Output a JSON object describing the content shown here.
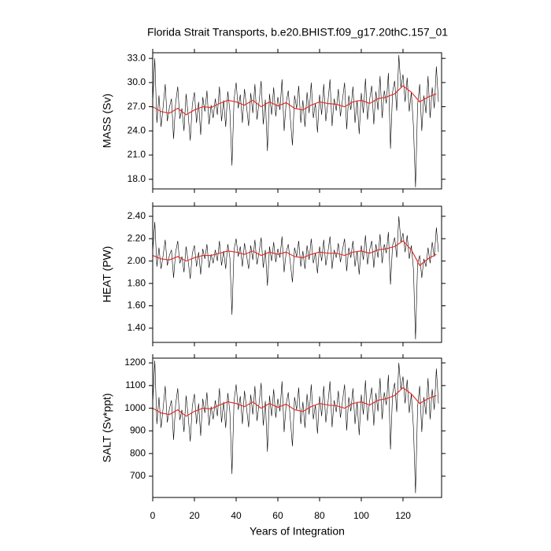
{
  "chart_data": [
    {
      "type": "line",
      "title": "Florida Strait Transports, b.e20.BHIST.f09_g17.20thC.157_01",
      "ylabel": "MASS (Sv)",
      "xlim": [
        0,
        138.5
      ],
      "xticks": [
        0,
        20,
        40,
        60,
        80,
        100,
        120
      ],
      "ylim": [
        16.8,
        33.7
      ],
      "yticks": [
        {
          "value": 18,
          "label": "18.0"
        },
        {
          "value": 21,
          "label": "21.0"
        },
        {
          "value": 24,
          "label": "24.0"
        },
        {
          "value": 27,
          "label": "27.0"
        },
        {
          "value": 30,
          "label": "30.0"
        },
        {
          "value": 33,
          "label": "33.0"
        }
      ],
      "x": [
        0,
        1,
        2,
        3,
        4,
        5,
        6,
        7,
        8,
        9,
        10,
        11,
        12,
        13,
        14,
        15,
        16,
        17,
        18,
        19,
        20,
        21,
        22,
        23,
        24,
        25,
        26,
        27,
        28,
        29,
        30,
        31,
        32,
        33,
        34,
        35,
        36,
        37,
        38,
        39,
        40,
        41,
        42,
        43,
        44,
        45,
        46,
        47,
        48,
        49,
        50,
        51,
        52,
        53,
        54,
        55,
        56,
        57,
        58,
        59,
        60,
        61,
        62,
        63,
        64,
        65,
        66,
        67,
        68,
        69,
        70,
        71,
        72,
        73,
        74,
        75,
        76,
        77,
        78,
        79,
        80,
        81,
        82,
        83,
        84,
        85,
        86,
        87,
        88,
        89,
        90,
        91,
        92,
        93,
        94,
        95,
        96,
        97,
        98,
        99,
        100,
        101,
        102,
        103,
        104,
        105,
        106,
        107,
        108,
        109,
        110,
        111,
        112,
        113,
        114,
        115,
        116,
        117,
        118,
        119,
        120,
        121,
        122,
        123,
        124,
        125,
        126,
        127,
        128,
        129,
        130,
        131,
        132,
        133,
        134,
        135,
        136,
        137
      ],
      "series": [
        {
          "color": "#000000",
          "values": [
            27.5,
            33.0,
            25.0,
            28.4,
            24.5,
            27.0,
            29.8,
            25.2,
            26.9,
            28.0,
            23.0,
            27.5,
            29.5,
            25.5,
            26.8,
            24.0,
            28.6,
            26.0,
            22.8,
            27.3,
            28.8,
            25.0,
            27.6,
            23.5,
            28.2,
            26.4,
            29.0,
            24.8,
            27.2,
            25.6,
            28.0,
            26.0,
            29.5,
            25.2,
            27.8,
            24.5,
            28.9,
            26.5,
            19.7,
            27.9,
            30.0,
            26.8,
            28.5,
            25.0,
            29.2,
            27.0,
            24.6,
            28.7,
            26.2,
            29.8,
            25.4,
            27.6,
            30.2,
            24.8,
            27.9,
            21.5,
            28.6,
            26.0,
            29.4,
            25.8,
            28.2,
            26.6,
            30.4,
            24.0,
            27.5,
            29.0,
            25.5,
            22.2,
            28.4,
            26.8,
            29.6,
            25.0,
            27.8,
            24.5,
            28.8,
            26.2,
            30.0,
            25.6,
            27.4,
            23.8,
            28.5,
            26.0,
            29.8,
            25.2,
            27.6,
            30.4,
            24.6,
            28.0,
            26.5,
            29.2,
            25.8,
            27.9,
            30.0,
            24.2,
            28.4,
            26.6,
            29.5,
            25.0,
            27.8,
            23.6,
            28.7,
            26.2,
            30.5,
            25.4,
            27.9,
            29.6,
            24.8,
            28.9,
            26.6,
            30.8,
            25.6,
            29.0,
            27.4,
            31.2,
            21.8,
            28.8,
            30.2,
            26.5,
            33.4,
            29.4,
            31.0,
            27.6,
            30.6,
            26.4,
            28.8,
            24.6,
            17.0,
            27.2,
            29.8,
            24.0,
            28.4,
            26.2,
            30.8,
            25.6,
            29.4,
            26.8,
            32.0,
            27.6
          ]
        },
        {
          "color": "#e0302a",
          "x": [
            0,
            4,
            8,
            12,
            16,
            20,
            24,
            28,
            32,
            36,
            40,
            44,
            48,
            52,
            56,
            60,
            64,
            68,
            72,
            76,
            80,
            84,
            88,
            92,
            96,
            100,
            104,
            108,
            112,
            116,
            120,
            124,
            128,
            132,
            136
          ],
          "values": [
            27.0,
            26.4,
            26.2,
            26.8,
            26.0,
            26.6,
            27.0,
            26.9,
            27.4,
            27.8,
            27.6,
            27.2,
            27.8,
            27.0,
            27.6,
            27.1,
            27.5,
            26.8,
            26.6,
            27.2,
            27.6,
            27.4,
            27.3,
            27.0,
            27.6,
            27.8,
            27.4,
            28.0,
            28.2,
            28.6,
            29.6,
            28.8,
            27.6,
            28.2,
            28.6
          ]
        }
      ]
    },
    {
      "type": "line",
      "ylabel": "HEAT (PW)",
      "xlim": [
        0,
        138.5
      ],
      "xticks": [
        0,
        20,
        40,
        60,
        80,
        100,
        120
      ],
      "ylim": [
        1.273,
        2.49
      ],
      "yticks": [
        {
          "value": 1.4,
          "label": "1.40"
        },
        {
          "value": 1.6,
          "label": "1.60"
        },
        {
          "value": 1.8,
          "label": "1.80"
        },
        {
          "value": 2.0,
          "label": "2.00"
        },
        {
          "value": 2.2,
          "label": "2.20"
        },
        {
          "value": 2.4,
          "label": "2.40"
        }
      ],
      "x": [
        0,
        1,
        2,
        3,
        4,
        5,
        6,
        7,
        8,
        9,
        10,
        11,
        12,
        13,
        14,
        15,
        16,
        17,
        18,
        19,
        20,
        21,
        22,
        23,
        24,
        25,
        26,
        27,
        28,
        29,
        30,
        31,
        32,
        33,
        34,
        35,
        36,
        37,
        38,
        39,
        40,
        41,
        42,
        43,
        44,
        45,
        46,
        47,
        48,
        49,
        50,
        51,
        52,
        53,
        54,
        55,
        56,
        57,
        58,
        59,
        60,
        61,
        62,
        63,
        64,
        65,
        66,
        67,
        68,
        69,
        70,
        71,
        72,
        73,
        74,
        75,
        76,
        77,
        78,
        79,
        80,
        81,
        82,
        83,
        84,
        85,
        86,
        87,
        88,
        89,
        90,
        91,
        92,
        93,
        94,
        95,
        96,
        97,
        98,
        99,
        100,
        101,
        102,
        103,
        104,
        105,
        106,
        107,
        108,
        109,
        110,
        111,
        112,
        113,
        114,
        115,
        116,
        117,
        118,
        119,
        120,
        121,
        122,
        123,
        124,
        125,
        126,
        127,
        128,
        129,
        130,
        131,
        132,
        133,
        134,
        135,
        136,
        137
      ],
      "series": [
        {
          "color": "#000000",
          "values": [
            2.08,
            2.35,
            1.95,
            2.12,
            1.93,
            2.05,
            2.19,
            1.96,
            2.05,
            2.1,
            1.85,
            2.08,
            2.18,
            1.98,
            2.04,
            1.9,
            2.13,
            2.0,
            1.84,
            2.07,
            2.14,
            1.95,
            2.08,
            1.88,
            2.11,
            2.02,
            2.15,
            1.94,
            2.06,
            1.98,
            2.1,
            2.0,
            2.18,
            1.96,
            2.09,
            1.93,
            2.15,
            2.03,
            1.52,
            2.1,
            2.2,
            2.04,
            2.13,
            1.95,
            2.16,
            2.05,
            1.93,
            2.14,
            2.01,
            2.19,
            1.97,
            2.08,
            2.21,
            1.94,
            2.1,
            1.78,
            2.13,
            2.0,
            2.17,
            1.99,
            2.11,
            2.03,
            2.22,
            1.9,
            2.08,
            2.15,
            1.98,
            1.81,
            2.12,
            2.04,
            2.18,
            1.95,
            2.09,
            1.93,
            2.14,
            2.01,
            2.2,
            1.98,
            2.07,
            1.89,
            2.13,
            2.0,
            2.19,
            1.96,
            2.08,
            2.22,
            1.93,
            2.1,
            2.03,
            2.16,
            1.99,
            2.1,
            2.2,
            1.91,
            2.12,
            2.03,
            2.18,
            1.95,
            2.09,
            1.88,
            2.14,
            2.01,
            2.23,
            1.97,
            2.1,
            2.18,
            1.94,
            2.15,
            2.03,
            2.24,
            1.98,
            2.15,
            2.07,
            2.26,
            1.79,
            2.14,
            2.21,
            2.03,
            2.4,
            2.17,
            2.25,
            2.08,
            2.23,
            2.02,
            2.14,
            1.93,
            1.3,
            1.98,
            2.05,
            1.85,
            2.02,
            1.95,
            2.12,
            1.98,
            2.17,
            2.04,
            2.3,
            2.08
          ]
        },
        {
          "color": "#e0302a",
          "x": [
            0,
            4,
            8,
            12,
            16,
            20,
            24,
            28,
            32,
            36,
            40,
            44,
            48,
            52,
            56,
            60,
            64,
            68,
            72,
            76,
            80,
            84,
            88,
            92,
            96,
            100,
            104,
            108,
            112,
            116,
            120,
            124,
            128,
            132,
            136
          ],
          "values": [
            2.05,
            2.02,
            2.01,
            2.04,
            2.0,
            2.03,
            2.05,
            2.05,
            2.07,
            2.09,
            2.08,
            2.06,
            2.09,
            2.05,
            2.08,
            2.06,
            2.08,
            2.04,
            2.03,
            2.06,
            2.08,
            2.07,
            2.07,
            2.05,
            2.08,
            2.09,
            2.07,
            2.1,
            2.11,
            2.13,
            2.18,
            2.1,
            1.96,
            2.02,
            2.06
          ]
        }
      ]
    },
    {
      "type": "line",
      "ylabel": "SALT (Sv*ppt)",
      "xlabel": "Years of Integration",
      "xlim": [
        0,
        138.5
      ],
      "xticks": [
        0,
        20,
        40,
        60,
        80,
        100,
        120
      ],
      "ylim": [
        606,
        1221
      ],
      "yticks": [
        700,
        800,
        900,
        1000,
        1100,
        1200
      ],
      "x": [
        0,
        1,
        2,
        3,
        4,
        5,
        6,
        7,
        8,
        9,
        10,
        11,
        12,
        13,
        14,
        15,
        16,
        17,
        18,
        19,
        20,
        21,
        22,
        23,
        24,
        25,
        26,
        27,
        28,
        29,
        30,
        31,
        32,
        33,
        34,
        35,
        36,
        37,
        38,
        39,
        40,
        41,
        42,
        43,
        44,
        45,
        46,
        47,
        48,
        49,
        50,
        51,
        52,
        53,
        54,
        55,
        56,
        57,
        58,
        59,
        60,
        61,
        62,
        63,
        64,
        65,
        66,
        67,
        68,
        69,
        70,
        71,
        72,
        73,
        74,
        75,
        76,
        77,
        78,
        79,
        80,
        81,
        82,
        83,
        84,
        85,
        86,
        87,
        88,
        89,
        90,
        91,
        92,
        93,
        94,
        95,
        96,
        97,
        98,
        99,
        100,
        101,
        102,
        103,
        104,
        105,
        106,
        107,
        108,
        109,
        110,
        111,
        112,
        113,
        114,
        115,
        116,
        117,
        118,
        119,
        120,
        121,
        122,
        123,
        124,
        125,
        126,
        127,
        128,
        129,
        130,
        131,
        132,
        133,
        134,
        135,
        136,
        137
      ],
      "series": [
        {
          "color": "#000000",
          "values": [
            1018,
            1210,
            930,
            1049,
            913,
            1000,
            1098,
            937,
            997,
            1035,
            860,
            1018,
            1088,
            948,
            993,
            895,
            1056,
            965,
            853,
            1011,
            1063,
            930,
            1021,
            878,
            1042,
            979,
            1070,
            923,
            1007,
            951,
            1035,
            965,
            1088,
            937,
            1028,
            913,
            1067,
            983,
            710,
            1032,
            1105,
            993,
            1053,
            930,
            1077,
            1000,
            916,
            1060,
            972,
            1098,
            944,
            1021,
            1112,
            923,
            1032,
            808,
            1056,
            965,
            1084,
            958,
            1042,
            986,
            1119,
            895,
            1018,
            1070,
            948,
            832,
            1049,
            993,
            1091,
            930,
            1028,
            913,
            1063,
            972,
            1105,
            951,
            1014,
            888,
            1053,
            965,
            1098,
            937,
            1021,
            1119,
            916,
            1035,
            983,
            1077,
            958,
            1032,
            1105,
            902,
            1049,
            986,
            1088,
            930,
            1028,
            881,
            1060,
            972,
            1123,
            944,
            1032,
            1091,
            923,
            1067,
            986,
            1133,
            951,
            1070,
            1014,
            1147,
            818,
            1063,
            1112,
            983,
            1200,
            1084,
            1140,
            1021,
            1126,
            979,
            1063,
            916,
            625,
            1007,
            1098,
            895,
            1049,
            972,
            1133,
            951,
            1084,
            993,
            1175,
            1021
          ]
        },
        {
          "color": "#e0302a",
          "x": [
            0,
            4,
            8,
            12,
            16,
            20,
            24,
            28,
            32,
            36,
            40,
            44,
            48,
            52,
            56,
            60,
            64,
            68,
            72,
            76,
            80,
            84,
            88,
            92,
            96,
            100,
            104,
            108,
            112,
            116,
            120,
            124,
            128,
            132,
            136
          ],
          "values": [
            1000,
            979,
            972,
            993,
            965,
            986,
            1000,
            997,
            1014,
            1028,
            1021,
            1007,
            1028,
            1000,
            1021,
            1004,
            1018,
            993,
            986,
            1007,
            1021,
            1014,
            1011,
            1000,
            1021,
            1028,
            1014,
            1035,
            1042,
            1056,
            1091,
            1063,
            1021,
            1042,
            1056
          ]
        }
      ]
    }
  ]
}
